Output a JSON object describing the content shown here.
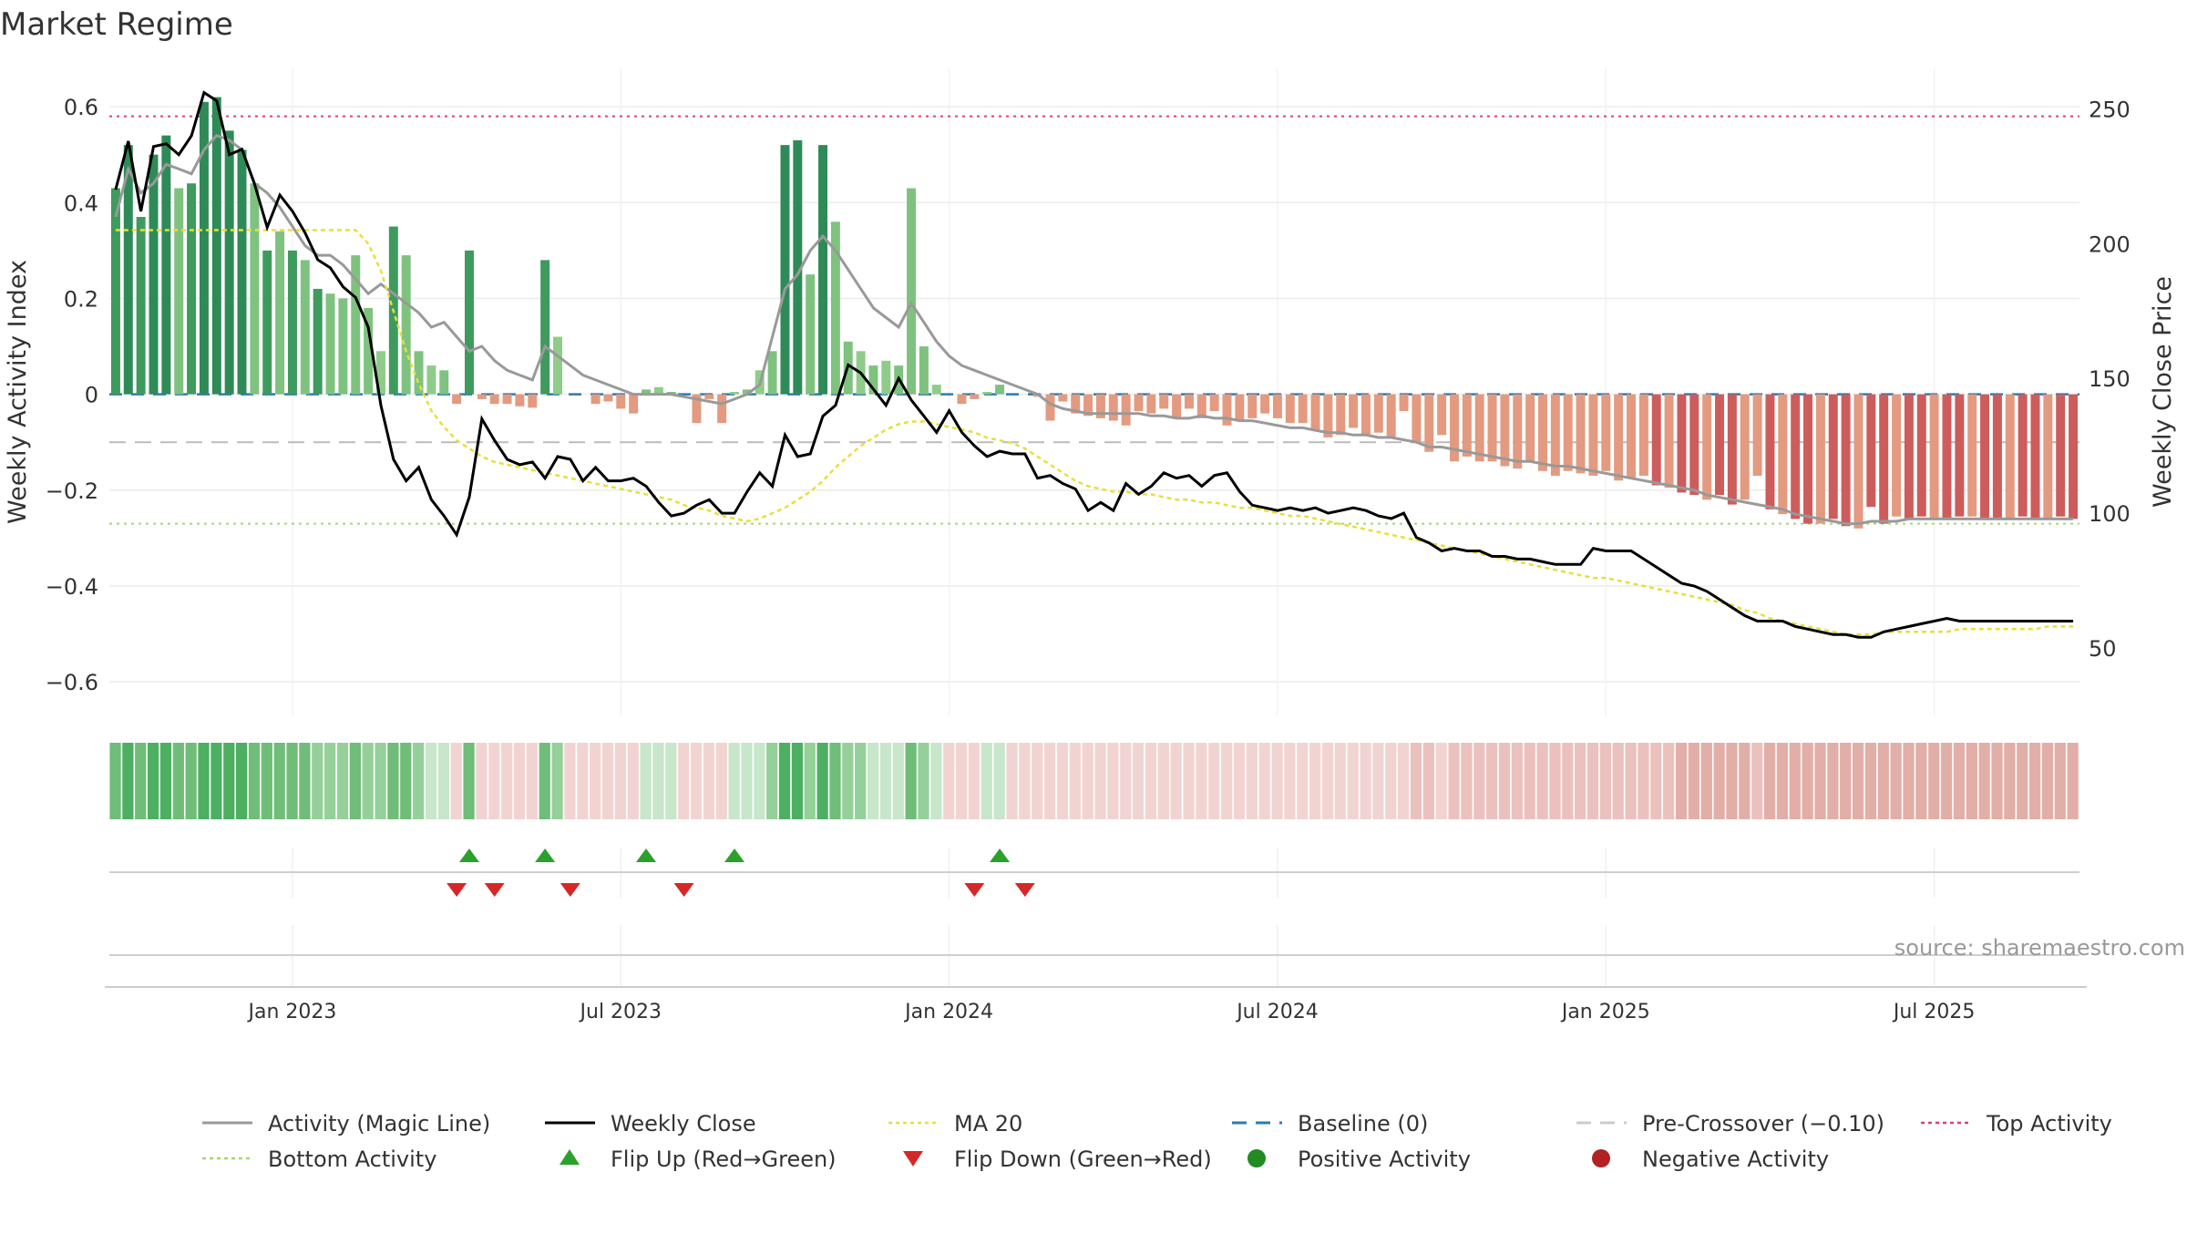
{
  "chart_data": {
    "type": "bar",
    "title": "Market Regime",
    "ylabel_left": "Weekly Activity Index",
    "ylabel_right": "Weekly Close Price",
    "left_ylim": [
      -0.67,
      0.68
    ],
    "right_ylim": [
      25,
      265
    ],
    "left_ticks": [
      0.6,
      0.4,
      0.2,
      0,
      -0.2,
      -0.4,
      -0.6
    ],
    "left_tick_labels": [
      "0.6",
      "0.4",
      "0.2",
      "0",
      "−0.2",
      "−0.4",
      "−0.6"
    ],
    "right_ticks": [
      250,
      200,
      150,
      100,
      50
    ],
    "right_tick_labels": [
      "250",
      "200",
      "150",
      "100",
      "50"
    ],
    "x_ticks": [
      {
        "week": 14,
        "label": "Jan 2023"
      },
      {
        "week": 40,
        "label": "Jul 2023"
      },
      {
        "week": 66,
        "label": "Jan 2024"
      },
      {
        "week": 92,
        "label": "Jul 2024"
      },
      {
        "week": 118,
        "label": "Jan 2025"
      },
      {
        "week": 144,
        "label": "Jul 2025"
      }
    ],
    "reference_lines": [
      {
        "name": "Top Activity",
        "value": 0.58,
        "color": "#d6456b"
      },
      {
        "name": "Baseline (0)",
        "value": 0,
        "color": "#2b7bb0"
      },
      {
        "name": "Pre-Crossover (−0.10)",
        "value": -0.1,
        "color": "#bbbbbb"
      },
      {
        "name": "Bottom Activity",
        "value": -0.27,
        "color": "#a8d672"
      }
    ],
    "activity_bars": [
      0.43,
      0.52,
      0.37,
      0.5,
      0.54,
      0.43,
      0.44,
      0.61,
      0.62,
      0.55,
      0.51,
      0.44,
      0.3,
      0.34,
      0.3,
      0.28,
      0.22,
      0.21,
      0.2,
      0.29,
      0.18,
      0.09,
      0.35,
      0.29,
      0.09,
      0.06,
      0.05,
      -0.02,
      0.3,
      -0.01,
      -0.02,
      -0.02,
      -0.025,
      -0.028,
      0.28,
      0.12,
      0.0,
      0.0,
      -0.02,
      -0.015,
      -0.03,
      -0.04,
      0.01,
      0.015,
      0.005,
      0.0,
      -0.06,
      -0.01,
      -0.06,
      0.005,
      0.01,
      0.05,
      0.09,
      0.52,
      0.53,
      0.25,
      0.52,
      0.36,
      0.11,
      0.09,
      0.06,
      0.07,
      0.06,
      0.43,
      0.1,
      0.02,
      0.0,
      -0.02,
      -0.01,
      0.005,
      0.02,
      0.0,
      0.0,
      -0.005,
      -0.055,
      -0.015,
      -0.04,
      -0.045,
      -0.05,
      -0.055,
      -0.065,
      -0.035,
      -0.04,
      -0.03,
      -0.05,
      -0.03,
      -0.05,
      -0.035,
      -0.065,
      -0.055,
      -0.05,
      -0.04,
      -0.05,
      -0.06,
      -0.06,
      -0.075,
      -0.09,
      -0.085,
      -0.07,
      -0.085,
      -0.08,
      -0.09,
      -0.035,
      -0.1,
      -0.12,
      -0.085,
      -0.14,
      -0.13,
      -0.14,
      -0.14,
      -0.15,
      -0.155,
      -0.14,
      -0.16,
      -0.17,
      -0.16,
      -0.165,
      -0.17,
      -0.16,
      -0.18,
      -0.175,
      -0.17,
      -0.19,
      -0.195,
      -0.205,
      -0.21,
      -0.22,
      -0.21,
      -0.23,
      -0.22,
      -0.17,
      -0.24,
      -0.25,
      -0.26,
      -0.27,
      -0.27,
      -0.26,
      -0.275,
      -0.28,
      -0.235,
      -0.27,
      -0.255,
      -0.26,
      -0.255,
      -0.26,
      -0.26,
      -0.255,
      -0.255,
      -0.26,
      -0.26,
      -0.26,
      -0.255,
      -0.26,
      -0.26,
      -0.255,
      -0.26
    ],
    "magic_line": [
      0.37,
      0.47,
      0.42,
      0.44,
      0.48,
      0.47,
      0.46,
      0.51,
      0.54,
      0.53,
      0.51,
      0.44,
      0.42,
      0.39,
      0.35,
      0.31,
      0.29,
      0.29,
      0.27,
      0.24,
      0.21,
      0.23,
      0.21,
      0.19,
      0.17,
      0.14,
      0.15,
      0.12,
      0.09,
      0.1,
      0.07,
      0.05,
      0.04,
      0.03,
      0.1,
      0.08,
      0.06,
      0.04,
      0.03,
      0.02,
      0.01,
      0.0,
      0.0,
      0.0,
      0.0,
      -0.005,
      -0.01,
      -0.015,
      -0.02,
      -0.01,
      0.0,
      0.02,
      0.12,
      0.22,
      0.25,
      0.3,
      0.33,
      0.3,
      0.26,
      0.22,
      0.18,
      0.16,
      0.14,
      0.19,
      0.15,
      0.11,
      0.08,
      0.06,
      0.05,
      0.04,
      0.03,
      0.02,
      0.01,
      0.0,
      -0.02,
      -0.03,
      -0.035,
      -0.04,
      -0.04,
      -0.04,
      -0.04,
      -0.04,
      -0.045,
      -0.045,
      -0.05,
      -0.05,
      -0.045,
      -0.05,
      -0.05,
      -0.055,
      -0.055,
      -0.06,
      -0.065,
      -0.07,
      -0.07,
      -0.075,
      -0.08,
      -0.08,
      -0.085,
      -0.085,
      -0.09,
      -0.09,
      -0.095,
      -0.1,
      -0.11,
      -0.11,
      -0.115,
      -0.12,
      -0.125,
      -0.13,
      -0.135,
      -0.14,
      -0.14,
      -0.145,
      -0.15,
      -0.15,
      -0.155,
      -0.16,
      -0.165,
      -0.17,
      -0.175,
      -0.18,
      -0.185,
      -0.19,
      -0.195,
      -0.2,
      -0.21,
      -0.215,
      -0.22,
      -0.225,
      -0.23,
      -0.235,
      -0.24,
      -0.25,
      -0.255,
      -0.26,
      -0.265,
      -0.27,
      -0.27,
      -0.265,
      -0.265,
      -0.265,
      -0.26,
      -0.26,
      -0.26,
      -0.26,
      -0.26,
      -0.26,
      -0.26,
      -0.26,
      -0.26,
      -0.26,
      -0.26,
      -0.26,
      -0.26,
      -0.26
    ],
    "weekly_close": [
      220,
      238,
      212,
      236,
      237,
      233,
      240,
      256,
      253,
      233,
      235,
      222,
      206,
      218,
      212,
      204,
      194,
      191,
      184,
      180,
      169,
      140,
      120,
      112,
      117,
      105,
      99,
      92,
      106,
      135,
      127,
      120,
      118,
      119,
      113,
      121,
      120,
      112,
      117,
      112,
      112,
      113,
      110,
      104,
      99,
      100,
      103,
      105,
      100,
      100,
      108,
      115,
      110,
      129,
      121,
      122,
      136,
      140,
      155,
      152,
      146,
      140,
      150,
      142,
      136,
      130,
      138,
      130,
      125,
      121,
      123,
      122,
      122,
      113,
      114,
      111,
      109,
      101,
      104,
      101,
      111,
      107,
      110,
      115,
      113,
      114,
      110,
      114,
      115,
      108,
      103,
      102,
      101,
      102,
      101,
      102,
      100,
      101,
      102,
      101,
      99,
      98,
      100,
      91,
      89,
      86,
      87,
      86,
      86,
      84,
      84,
      83,
      83,
      82,
      81,
      81,
      81,
      87,
      86,
      86,
      86,
      83,
      80,
      77,
      74,
      73,
      71,
      68,
      65,
      62,
      60,
      60,
      60,
      58,
      57,
      56,
      55,
      55,
      54,
      54,
      56,
      57,
      58,
      59,
      60,
      61,
      60,
      60,
      60,
      60,
      60,
      60,
      60,
      60,
      60,
      60
    ],
    "ma20": [
      205,
      205,
      205,
      205,
      205,
      205,
      205,
      205,
      205,
      205,
      205,
      205,
      205,
      205,
      205,
      205,
      205,
      205,
      205,
      205,
      200,
      190,
      175,
      160,
      148,
      138,
      132,
      127,
      124,
      121,
      119,
      118,
      117,
      116,
      115,
      114,
      113,
      112,
      111,
      110,
      109,
      108,
      107,
      106,
      105,
      103,
      102,
      101,
      99,
      98,
      97,
      98,
      100,
      102,
      105,
      108,
      112,
      117,
      121,
      125,
      128,
      131,
      133,
      134,
      134,
      133,
      132,
      131,
      130,
      128,
      127,
      126,
      124,
      121,
      118,
      115,
      112,
      110,
      109,
      108,
      108,
      107,
      107,
      106,
      105,
      105,
      104,
      104,
      103,
      102,
      102,
      101,
      100,
      99,
      99,
      98,
      97,
      96,
      95,
      94,
      93,
      92,
      91,
      90,
      89,
      88,
      87,
      86,
      85,
      84,
      83,
      82,
      81,
      80,
      79,
      78,
      77,
      76,
      76,
      75,
      74,
      73,
      72,
      71,
      70,
      69,
      68,
      67,
      66,
      64,
      63,
      61,
      60,
      59,
      58,
      57,
      56,
      55,
      55,
      55,
      56,
      56,
      56,
      56,
      56,
      56,
      57,
      57,
      57,
      57,
      57,
      57,
      57,
      58,
      58,
      58
    ],
    "flip_up_weeks": [
      28,
      34,
      42,
      49,
      70
    ],
    "flip_down_weeks": [
      27,
      30,
      36,
      45,
      68,
      72
    ],
    "source": "source: sharemaestro.com",
    "legend": [
      {
        "label": "Activity (Magic Line)",
        "kind": "line",
        "color": "#999999"
      },
      {
        "label": "Weekly Close",
        "kind": "line",
        "color": "#000000"
      },
      {
        "label": "MA 20",
        "kind": "dotted",
        "color": "#e8df3a"
      },
      {
        "label": "Baseline (0)",
        "kind": "dashed",
        "color": "#2b7bb0"
      },
      {
        "label": "Pre-Crossover (−0.10)",
        "kind": "dashed",
        "color": "#cccccc"
      },
      {
        "label": "Top Activity",
        "kind": "dotted",
        "color": "#d6456b"
      },
      {
        "label": "Bottom Activity",
        "kind": "dotted",
        "color": "#a8d672"
      },
      {
        "label": "Flip Up (Red→Green)",
        "kind": "triangle-up",
        "color": "#2ca02c"
      },
      {
        "label": "Flip Down (Green→Red)",
        "kind": "triangle-down",
        "color": "#d62728"
      },
      {
        "label": "Positive Activity",
        "kind": "dot",
        "color": "#228b22"
      },
      {
        "label": "Negative Activity",
        "kind": "dot",
        "color": "#b22222"
      }
    ]
  }
}
